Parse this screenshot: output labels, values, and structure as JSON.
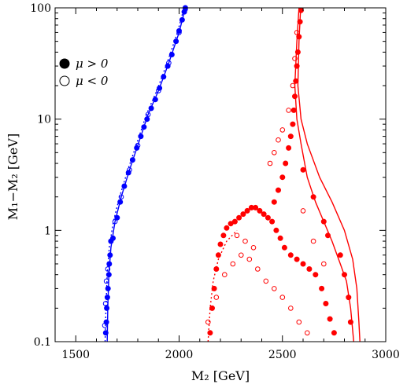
{
  "chart_data": {
    "type": "scatter",
    "title": "",
    "xlabel": "M₂ [GeV]",
    "ylabel": "M₁−M₂ [GeV]",
    "xlim": [
      1400,
      3000
    ],
    "ylim": [
      0.1,
      100
    ],
    "yscale": "log",
    "grid": false,
    "legend_position": "top-left",
    "x_ticks": [
      {
        "value": 1500,
        "label": "1500"
      },
      {
        "value": 2000,
        "label": "2000"
      },
      {
        "value": 2500,
        "label": "2500"
      },
      {
        "value": 3000,
        "label": "3000"
      }
    ],
    "y_ticks": [
      {
        "value": 0.1,
        "label": "0.1"
      },
      {
        "value": 1,
        "label": "1"
      },
      {
        "value": 10,
        "label": "10"
      },
      {
        "value": 100,
        "label": "100"
      }
    ],
    "legend": [
      {
        "label": "μ > 0",
        "marker": "filled-circle"
      },
      {
        "label": "μ < 0",
        "marker": "open-circle"
      }
    ],
    "colors": {
      "blue_band": "#0000ff",
      "red_band": "#ff0000"
    },
    "series": [
      {
        "color": "#0000ff",
        "marker": "filled-circle",
        "points": [
          [
            1645,
            0.12
          ],
          [
            1648,
            0.15
          ],
          [
            1650,
            0.2
          ],
          [
            1653,
            0.25
          ],
          [
            1656,
            0.3
          ],
          [
            1660,
            0.4
          ],
          [
            1662,
            0.5
          ],
          [
            1666,
            0.6
          ],
          [
            1670,
            0.8
          ],
          [
            1680,
            0.85
          ],
          [
            1700,
            1.3
          ],
          [
            1715,
            1.8
          ],
          [
            1735,
            2.5
          ],
          [
            1755,
            3.3
          ],
          [
            1775,
            4.3
          ],
          [
            1795,
            5.5
          ],
          [
            1815,
            7.0
          ],
          [
            1830,
            8.5
          ],
          [
            1845,
            10
          ],
          [
            1865,
            12.5
          ],
          [
            1885,
            15
          ],
          [
            1905,
            19
          ],
          [
            1925,
            24
          ],
          [
            1945,
            30
          ],
          [
            1965,
            38
          ],
          [
            1985,
            50
          ],
          [
            2000,
            62
          ],
          [
            2015,
            78
          ],
          [
            2025,
            92
          ],
          [
            2030,
            100
          ]
        ]
      },
      {
        "color": "#0000ff",
        "marker": "open-circle",
        "points": [
          [
            1640,
            0.14
          ],
          [
            1644,
            0.22
          ],
          [
            1648,
            0.35
          ],
          [
            1655,
            0.45
          ],
          [
            1690,
            1.2
          ],
          [
            1720,
            2.0
          ],
          [
            1760,
            3.5
          ],
          [
            1800,
            5.8
          ],
          [
            1850,
            11
          ],
          [
            1900,
            18
          ],
          [
            1950,
            32
          ],
          [
            2000,
            60
          ],
          [
            2030,
            97
          ]
        ]
      },
      {
        "color": "#ff0000",
        "marker": "filled-circle",
        "points": [
          [
            2150,
            0.12
          ],
          [
            2160,
            0.2
          ],
          [
            2170,
            0.3
          ],
          [
            2180,
            0.45
          ],
          [
            2190,
            0.6
          ],
          [
            2200,
            0.75
          ],
          [
            2215,
            0.9
          ],
          [
            2230,
            1.05
          ],
          [
            2250,
            1.15
          ],
          [
            2270,
            1.2
          ],
          [
            2290,
            1.3
          ],
          [
            2310,
            1.4
          ],
          [
            2330,
            1.5
          ],
          [
            2350,
            1.6
          ],
          [
            2370,
            1.6
          ],
          [
            2390,
            1.5
          ],
          [
            2410,
            1.4
          ],
          [
            2430,
            1.3
          ],
          [
            2450,
            1.2
          ],
          [
            2470,
            1.0
          ],
          [
            2490,
            0.85
          ],
          [
            2510,
            0.7
          ],
          [
            2540,
            0.6
          ],
          [
            2570,
            0.55
          ],
          [
            2600,
            0.5
          ],
          [
            2630,
            0.45
          ],
          [
            2660,
            0.4
          ],
          [
            2690,
            0.3
          ],
          [
            2710,
            0.22
          ],
          [
            2730,
            0.16
          ],
          [
            2750,
            0.12
          ],
          [
            2460,
            1.8
          ],
          [
            2480,
            2.3
          ],
          [
            2500,
            3.0
          ],
          [
            2515,
            4.0
          ],
          [
            2530,
            5.5
          ],
          [
            2540,
            7.0
          ],
          [
            2550,
            9.0
          ],
          [
            2555,
            12
          ],
          [
            2560,
            16
          ],
          [
            2565,
            22
          ],
          [
            2570,
            30
          ],
          [
            2575,
            40
          ],
          [
            2580,
            55
          ],
          [
            2585,
            75
          ],
          [
            2590,
            95
          ],
          [
            2600,
            3.5
          ],
          [
            2650,
            2.0
          ],
          [
            2700,
            1.2
          ],
          [
            2720,
            0.9
          ],
          [
            2780,
            0.6
          ],
          [
            2800,
            0.4
          ],
          [
            2820,
            0.25
          ],
          [
            2830,
            0.15
          ]
        ]
      },
      {
        "color": "#ff0000",
        "marker": "open-circle",
        "points": [
          [
            2140,
            0.15
          ],
          [
            2180,
            0.25
          ],
          [
            2220,
            0.4
          ],
          [
            2260,
            0.5
          ],
          [
            2300,
            0.6
          ],
          [
            2340,
            0.55
          ],
          [
            2380,
            0.45
          ],
          [
            2420,
            0.35
          ],
          [
            2460,
            0.3
          ],
          [
            2500,
            0.25
          ],
          [
            2540,
            0.2
          ],
          [
            2580,
            0.15
          ],
          [
            2620,
            0.12
          ],
          [
            2440,
            4.0
          ],
          [
            2460,
            5.0
          ],
          [
            2480,
            6.5
          ],
          [
            2500,
            8.0
          ],
          [
            2530,
            12
          ],
          [
            2550,
            20
          ],
          [
            2560,
            35
          ],
          [
            2570,
            60
          ],
          [
            2600,
            1.5
          ],
          [
            2650,
            0.8
          ],
          [
            2700,
            0.5
          ],
          [
            2280,
            0.9
          ],
          [
            2320,
            0.8
          ],
          [
            2360,
            0.7
          ]
        ]
      }
    ],
    "curves": [
      {
        "color": "#0000ff",
        "style": "solid",
        "points": [
          [
            1652,
            0.1
          ],
          [
            1655,
            0.2
          ],
          [
            1660,
            0.4
          ],
          [
            1670,
            0.7
          ],
          [
            1690,
            1.2
          ],
          [
            1720,
            2.0
          ],
          [
            1760,
            3.5
          ],
          [
            1800,
            5.8
          ],
          [
            1850,
            11
          ],
          [
            1900,
            18
          ],
          [
            1950,
            32
          ],
          [
            2000,
            60
          ],
          [
            2030,
            100
          ]
        ]
      },
      {
        "color": "#0000ff",
        "style": "dotted",
        "points": [
          [
            1642,
            0.1
          ],
          [
            1646,
            0.2
          ],
          [
            1652,
            0.4
          ],
          [
            1662,
            0.7
          ],
          [
            1682,
            1.2
          ],
          [
            1712,
            2.0
          ],
          [
            1752,
            3.5
          ],
          [
            1792,
            5.8
          ],
          [
            1842,
            11
          ],
          [
            1892,
            18
          ],
          [
            1942,
            32
          ],
          [
            1992,
            60
          ],
          [
            2024,
            100
          ]
        ]
      },
      {
        "color": "#ff0000",
        "style": "solid",
        "points": [
          [
            2580,
            100
          ],
          [
            2570,
            50
          ],
          [
            2560,
            20
          ],
          [
            2570,
            10
          ],
          [
            2590,
            6
          ],
          [
            2620,
            3
          ],
          [
            2660,
            1.8
          ],
          [
            2700,
            1.2
          ],
          [
            2740,
            0.8
          ],
          [
            2780,
            0.5
          ],
          [
            2810,
            0.35
          ],
          [
            2830,
            0.2
          ],
          [
            2845,
            0.1
          ]
        ]
      },
      {
        "color": "#ff0000",
        "style": "solid",
        "points": [
          [
            2588,
            100
          ],
          [
            2580,
            50
          ],
          [
            2575,
            20
          ],
          [
            2590,
            10
          ],
          [
            2620,
            6
          ],
          [
            2680,
            3
          ],
          [
            2740,
            1.8
          ],
          [
            2800,
            1.0
          ],
          [
            2840,
            0.55
          ],
          [
            2860,
            0.3
          ],
          [
            2870,
            0.15
          ],
          [
            2875,
            0.1
          ]
        ]
      },
      {
        "color": "#ff0000",
        "style": "dotted",
        "points": [
          [
            2140,
            0.1
          ],
          [
            2150,
            0.2
          ],
          [
            2165,
            0.35
          ],
          [
            2190,
            0.55
          ],
          [
            2230,
            0.8
          ],
          [
            2280,
            1.0
          ]
        ]
      }
    ]
  }
}
